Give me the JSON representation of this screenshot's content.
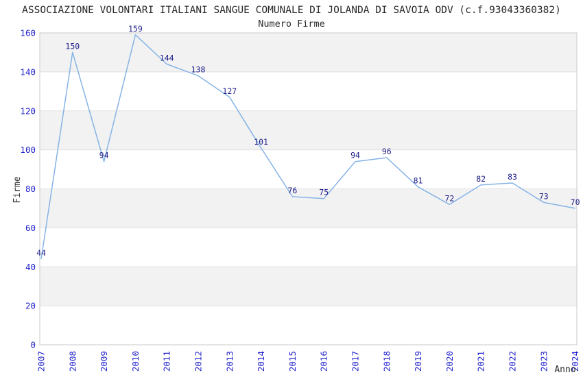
{
  "chart": {
    "title": "ASSOCIAZIONE VOLONTARI ITALIANI SANGUE COMUNALE DI JOLANDA DI SAVOIA ODV (c.f.93043360382)",
    "subtitle": "Numero Firme"
  },
  "chart_data": {
    "type": "line",
    "title": "Numero Firme",
    "xlabel": "Anno",
    "ylabel": "Firme",
    "categories": [
      "2007",
      "2008",
      "2009",
      "2010",
      "2011",
      "2012",
      "2013",
      "2014",
      "2015",
      "2016",
      "2017",
      "2018",
      "2019",
      "2020",
      "2021",
      "2022",
      "2023",
      "2024"
    ],
    "values": [
      44,
      150,
      94,
      159,
      144,
      138,
      127,
      101,
      76,
      75,
      94,
      96,
      81,
      72,
      82,
      83,
      73,
      70
    ],
    "ylim": [
      0,
      160
    ],
    "yticks": [
      0,
      20,
      40,
      60,
      80,
      100,
      120,
      140,
      160
    ],
    "grid": "alternating-horizontal-bands",
    "legend_position": "none",
    "data_labels_shown": true,
    "colors": {
      "line": "#85b3e6",
      "data_label": "#20208a",
      "tick_label": "#2424cd",
      "axis_label": "#2b2b2b",
      "band": "#f2f2f2",
      "gridline": "#e0e0e0",
      "border": "#c9c9c9"
    }
  }
}
